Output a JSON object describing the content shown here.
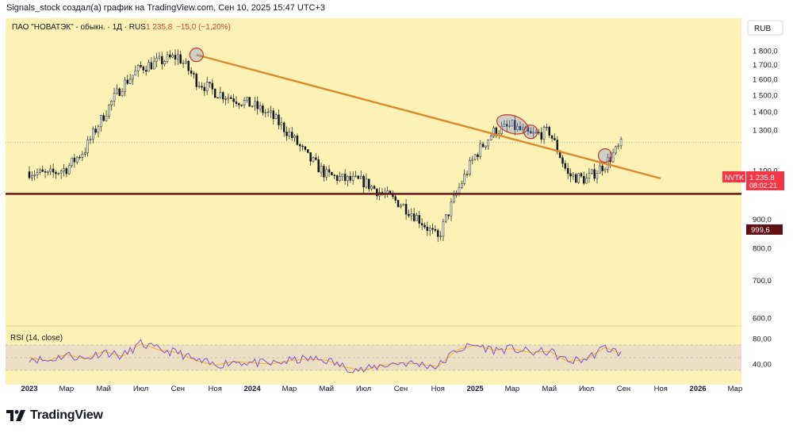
{
  "header": {
    "caption": "Signals_stock создал(а) график на TradingView.com, Сен 10, 2025 15:47 UTC+3"
  },
  "legend": {
    "symbol": "ПАО \"НОВАТЭК\" - обыкн. · 1Д · RUS",
    "last": "1 235,8",
    "change": "−15,0 (−1,20%)"
  },
  "currency": "RUB",
  "price_tag": {
    "ticker": "NVTK",
    "value": "1 235,8",
    "countdown": "08:02:21"
  },
  "support_tag": "999,6",
  "rsi_label": "RSI (14, close)",
  "brand": "TradingView",
  "colors": {
    "background": "#fdf2b5",
    "price_line": "#131722",
    "trendline": "#d98a2c",
    "support": "#5e1012",
    "rsi": "#7e57c2",
    "rsi_ma": "#f0b429",
    "rsi_band": "#ecdfc6",
    "tag_red": "#f23645"
  },
  "chart_data": {
    "type": "line",
    "title": "ПАО \"НОВАТЭК\" - обыкн. · 1Д · RUS",
    "xlabel": "",
    "ylabel": "",
    "x": [
      "2023-01",
      "2023-02",
      "2023-03",
      "2023-04",
      "2023-05",
      "2023-06",
      "2023-07",
      "2023-08",
      "2023-09",
      "2023-10",
      "2023-11",
      "2023-12",
      "2024-01",
      "2024-02",
      "2024-03",
      "2024-04",
      "2024-05",
      "2024-06",
      "2024-07",
      "2024-08",
      "2024-09",
      "2024-10",
      "2024-11",
      "2024-12",
      "2025-01",
      "2025-02",
      "2025-03",
      "2025-04",
      "2025-05",
      "2025-06",
      "2025-07",
      "2025-08",
      "2025-09"
    ],
    "series": [
      {
        "values": [
          1095,
          1080,
          1110,
          1200,
          1380,
          1560,
          1680,
          1720,
          1760,
          1590,
          1520,
          1480,
          1440,
          1380,
          1280,
          1160,
          1080,
          1060,
          1050,
          1000,
          960,
          900,
          830,
          1000,
          1170,
          1290,
          1320,
          1270,
          1290,
          1080,
          1060,
          1130,
          1236
        ]
      }
    ],
    "ylim": [
      560,
      1850
    ],
    "y_ticks": [
      "1 800,0",
      "1 700,0",
      "1 600,0",
      "1 500,0",
      "1 400,0",
      "1 300,0",
      "1 100,0",
      "900,0",
      "800,0",
      "700,0",
      "600,0"
    ],
    "x_ticks": [
      "2023",
      "Мар",
      "Май",
      "Июл",
      "Сен",
      "Ноя",
      "2024",
      "Мар",
      "Май",
      "Июл",
      "Сен",
      "Ноя",
      "2025",
      "Мар",
      "Май",
      "Июл",
      "Сен",
      "Ноя",
      "2026",
      "Мар"
    ],
    "trendline": {
      "start": {
        "x": "2023-10",
        "y": 1770
      },
      "end": {
        "x": "2025-11",
        "y": 1065
      }
    },
    "support_level": 999.6,
    "markers": [
      {
        "x": "2023-10",
        "y": 1770
      },
      {
        "x": "2025-03",
        "y": 1330
      },
      {
        "x": "2025-04",
        "y": 1290
      },
      {
        "x": "2025-08",
        "y": 1170
      }
    ],
    "rsi": {
      "ylim": [
        10,
        95
      ],
      "ticks": [
        "80,00",
        "40,00"
      ],
      "band": [
        30,
        70
      ],
      "values": [
        50,
        45,
        55,
        48,
        60,
        52,
        72,
        62,
        58,
        45,
        38,
        44,
        42,
        40,
        45,
        48,
        46,
        35,
        30,
        38,
        42,
        40,
        36,
        62,
        70,
        62,
        64,
        58,
        60,
        44,
        48,
        66,
        55
      ]
    },
    "grid": false
  }
}
